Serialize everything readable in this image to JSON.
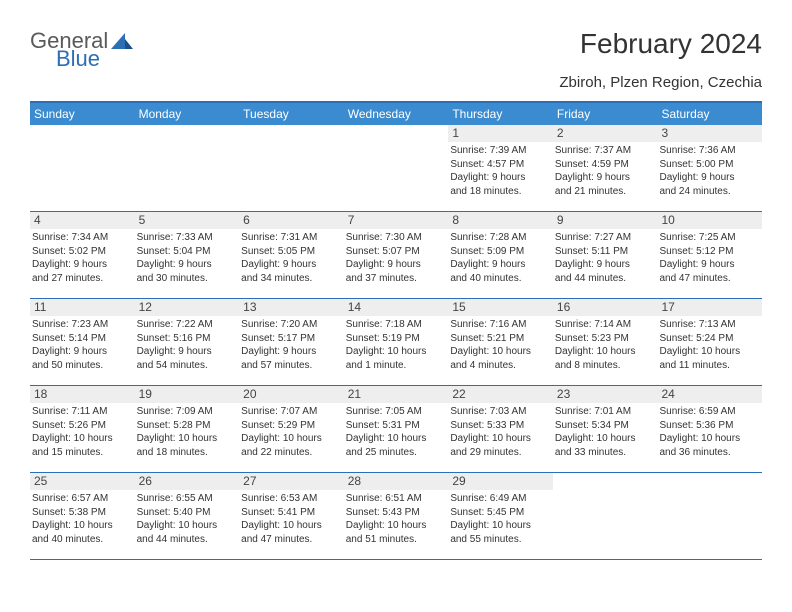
{
  "brand": {
    "part1": "General",
    "part2": "Blue"
  },
  "title": "February 2024",
  "location": "Zbiroh, Plzen Region, Czechia",
  "colors": {
    "headerBg": "#3a8bd0",
    "borderTop": "#2c6fb5",
    "dayNumBg": "#eeeeee",
    "text": "#333333"
  },
  "dayHeaders": [
    "Sunday",
    "Monday",
    "Tuesday",
    "Wednesday",
    "Thursday",
    "Friday",
    "Saturday"
  ],
  "weeks": [
    [
      {
        "empty": true
      },
      {
        "empty": true
      },
      {
        "empty": true
      },
      {
        "empty": true
      },
      {
        "num": "1",
        "sunrise": "Sunrise: 7:39 AM",
        "sunset": "Sunset: 4:57 PM",
        "day1": "Daylight: 9 hours",
        "day2": "and 18 minutes."
      },
      {
        "num": "2",
        "sunrise": "Sunrise: 7:37 AM",
        "sunset": "Sunset: 4:59 PM",
        "day1": "Daylight: 9 hours",
        "day2": "and 21 minutes."
      },
      {
        "num": "3",
        "sunrise": "Sunrise: 7:36 AM",
        "sunset": "Sunset: 5:00 PM",
        "day1": "Daylight: 9 hours",
        "day2": "and 24 minutes."
      }
    ],
    [
      {
        "num": "4",
        "sunrise": "Sunrise: 7:34 AM",
        "sunset": "Sunset: 5:02 PM",
        "day1": "Daylight: 9 hours",
        "day2": "and 27 minutes."
      },
      {
        "num": "5",
        "sunrise": "Sunrise: 7:33 AM",
        "sunset": "Sunset: 5:04 PM",
        "day1": "Daylight: 9 hours",
        "day2": "and 30 minutes."
      },
      {
        "num": "6",
        "sunrise": "Sunrise: 7:31 AM",
        "sunset": "Sunset: 5:05 PM",
        "day1": "Daylight: 9 hours",
        "day2": "and 34 minutes."
      },
      {
        "num": "7",
        "sunrise": "Sunrise: 7:30 AM",
        "sunset": "Sunset: 5:07 PM",
        "day1": "Daylight: 9 hours",
        "day2": "and 37 minutes."
      },
      {
        "num": "8",
        "sunrise": "Sunrise: 7:28 AM",
        "sunset": "Sunset: 5:09 PM",
        "day1": "Daylight: 9 hours",
        "day2": "and 40 minutes."
      },
      {
        "num": "9",
        "sunrise": "Sunrise: 7:27 AM",
        "sunset": "Sunset: 5:11 PM",
        "day1": "Daylight: 9 hours",
        "day2": "and 44 minutes."
      },
      {
        "num": "10",
        "sunrise": "Sunrise: 7:25 AM",
        "sunset": "Sunset: 5:12 PM",
        "day1": "Daylight: 9 hours",
        "day2": "and 47 minutes."
      }
    ],
    [
      {
        "num": "11",
        "sunrise": "Sunrise: 7:23 AM",
        "sunset": "Sunset: 5:14 PM",
        "day1": "Daylight: 9 hours",
        "day2": "and 50 minutes."
      },
      {
        "num": "12",
        "sunrise": "Sunrise: 7:22 AM",
        "sunset": "Sunset: 5:16 PM",
        "day1": "Daylight: 9 hours",
        "day2": "and 54 minutes."
      },
      {
        "num": "13",
        "sunrise": "Sunrise: 7:20 AM",
        "sunset": "Sunset: 5:17 PM",
        "day1": "Daylight: 9 hours",
        "day2": "and 57 minutes."
      },
      {
        "num": "14",
        "sunrise": "Sunrise: 7:18 AM",
        "sunset": "Sunset: 5:19 PM",
        "day1": "Daylight: 10 hours",
        "day2": "and 1 minute."
      },
      {
        "num": "15",
        "sunrise": "Sunrise: 7:16 AM",
        "sunset": "Sunset: 5:21 PM",
        "day1": "Daylight: 10 hours",
        "day2": "and 4 minutes."
      },
      {
        "num": "16",
        "sunrise": "Sunrise: 7:14 AM",
        "sunset": "Sunset: 5:23 PM",
        "day1": "Daylight: 10 hours",
        "day2": "and 8 minutes."
      },
      {
        "num": "17",
        "sunrise": "Sunrise: 7:13 AM",
        "sunset": "Sunset: 5:24 PM",
        "day1": "Daylight: 10 hours",
        "day2": "and 11 minutes."
      }
    ],
    [
      {
        "num": "18",
        "sunrise": "Sunrise: 7:11 AM",
        "sunset": "Sunset: 5:26 PM",
        "day1": "Daylight: 10 hours",
        "day2": "and 15 minutes."
      },
      {
        "num": "19",
        "sunrise": "Sunrise: 7:09 AM",
        "sunset": "Sunset: 5:28 PM",
        "day1": "Daylight: 10 hours",
        "day2": "and 18 minutes."
      },
      {
        "num": "20",
        "sunrise": "Sunrise: 7:07 AM",
        "sunset": "Sunset: 5:29 PM",
        "day1": "Daylight: 10 hours",
        "day2": "and 22 minutes."
      },
      {
        "num": "21",
        "sunrise": "Sunrise: 7:05 AM",
        "sunset": "Sunset: 5:31 PM",
        "day1": "Daylight: 10 hours",
        "day2": "and 25 minutes."
      },
      {
        "num": "22",
        "sunrise": "Sunrise: 7:03 AM",
        "sunset": "Sunset: 5:33 PM",
        "day1": "Daylight: 10 hours",
        "day2": "and 29 minutes."
      },
      {
        "num": "23",
        "sunrise": "Sunrise: 7:01 AM",
        "sunset": "Sunset: 5:34 PM",
        "day1": "Daylight: 10 hours",
        "day2": "and 33 minutes."
      },
      {
        "num": "24",
        "sunrise": "Sunrise: 6:59 AM",
        "sunset": "Sunset: 5:36 PM",
        "day1": "Daylight: 10 hours",
        "day2": "and 36 minutes."
      }
    ],
    [
      {
        "num": "25",
        "sunrise": "Sunrise: 6:57 AM",
        "sunset": "Sunset: 5:38 PM",
        "day1": "Daylight: 10 hours",
        "day2": "and 40 minutes."
      },
      {
        "num": "26",
        "sunrise": "Sunrise: 6:55 AM",
        "sunset": "Sunset: 5:40 PM",
        "day1": "Daylight: 10 hours",
        "day2": "and 44 minutes."
      },
      {
        "num": "27",
        "sunrise": "Sunrise: 6:53 AM",
        "sunset": "Sunset: 5:41 PM",
        "day1": "Daylight: 10 hours",
        "day2": "and 47 minutes."
      },
      {
        "num": "28",
        "sunrise": "Sunrise: 6:51 AM",
        "sunset": "Sunset: 5:43 PM",
        "day1": "Daylight: 10 hours",
        "day2": "and 51 minutes."
      },
      {
        "num": "29",
        "sunrise": "Sunrise: 6:49 AM",
        "sunset": "Sunset: 5:45 PM",
        "day1": "Daylight: 10 hours",
        "day2": "and 55 minutes."
      },
      {
        "empty": true
      },
      {
        "empty": true
      }
    ]
  ]
}
